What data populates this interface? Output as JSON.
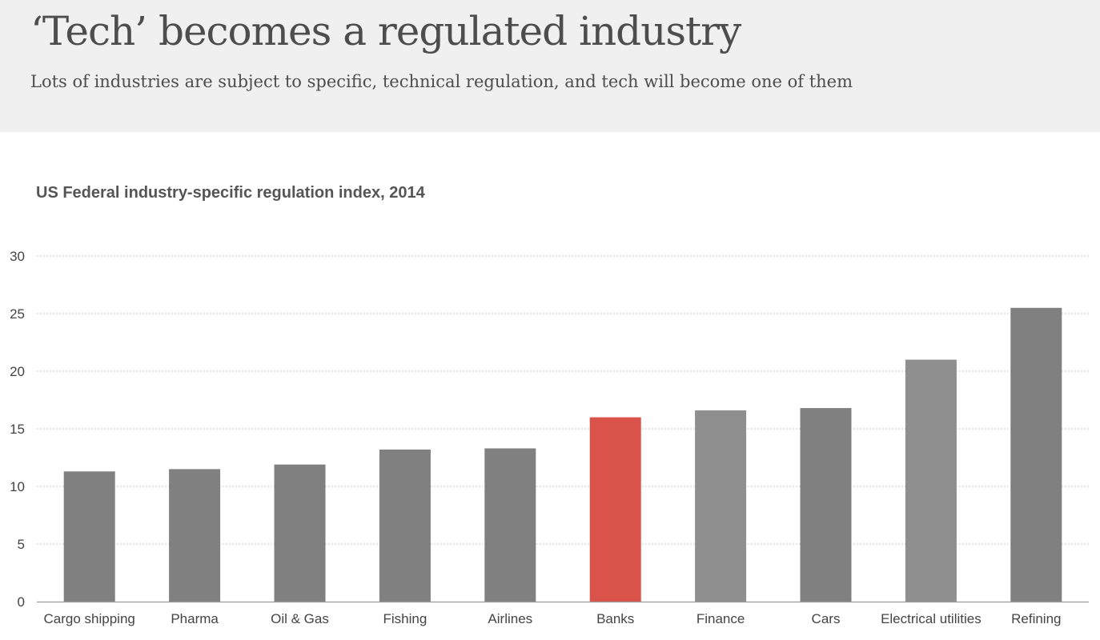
{
  "header": {
    "headline": "‘Tech’ becomes a regulated industry",
    "standfirst": "Lots of industries are subject to specific, technical regulation, and tech will become one of them"
  },
  "chart_data": {
    "type": "bar",
    "title": "US Federal industry-specific regulation index, 2014",
    "xlabel": "",
    "ylabel": "",
    "categories": [
      "Cargo shipping",
      "Pharma",
      "Oil & Gas",
      "Fishing",
      "Airlines",
      "Banks",
      "Finance",
      "Cars",
      "Electrical utilities",
      "Refining"
    ],
    "values": [
      11.3,
      11.5,
      11.9,
      13.2,
      13.3,
      16.0,
      16.6,
      16.8,
      21.0,
      25.5
    ],
    "ylim": [
      0,
      30
    ],
    "yticks": [
      0,
      5,
      10,
      15,
      20,
      25,
      30
    ],
    "grid": true,
    "legend": "none",
    "colors": {
      "default": "#808080",
      "light": "#8f8f8f",
      "highlight": "#d9534a",
      "grid": "#c8c8c8",
      "axis": "#9a9a9a",
      "text": "#444444"
    },
    "bar_color_keys": [
      "default",
      "default",
      "default",
      "default",
      "default",
      "highlight",
      "light",
      "default",
      "light",
      "default"
    ]
  }
}
